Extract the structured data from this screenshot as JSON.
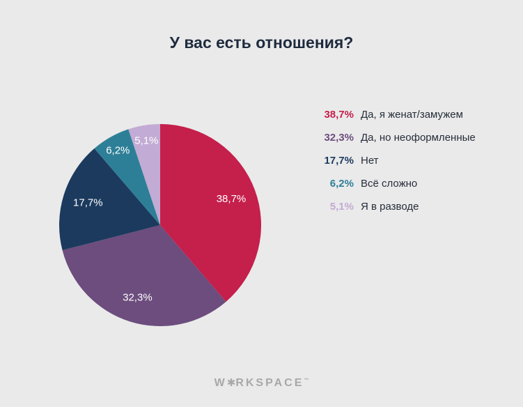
{
  "title": "У вас есть отношения?",
  "chart_data": {
    "type": "pie",
    "title": "У вас есть отношения?",
    "start_angle_deg": 0,
    "direction": "clockwise",
    "legend_position": "right",
    "slices": [
      {
        "label": "Да, я женат/замужем",
        "value": 38.7,
        "display": "38,7%",
        "color": "#c51f4c"
      },
      {
        "label": "Да, но неоформленные",
        "value": 32.3,
        "display": "32,3%",
        "color": "#6c4d7e"
      },
      {
        "label": "Нет",
        "value": 17.7,
        "display": "17,7%",
        "color": "#1c3a5e"
      },
      {
        "label": "Всё сложно",
        "value": 6.2,
        "display": "6,2%",
        "color": "#2d7f97"
      },
      {
        "label": "Я в разводе",
        "value": 5.1,
        "display": "5,1%",
        "color": "#c2abd4"
      }
    ],
    "background": "#eaeaea",
    "slice_label_color": "#ffffff"
  },
  "footer": {
    "logo_prefix": "W",
    "logo_star": "✱",
    "logo_suffix": "RKSPACE",
    "trademark": "™"
  }
}
